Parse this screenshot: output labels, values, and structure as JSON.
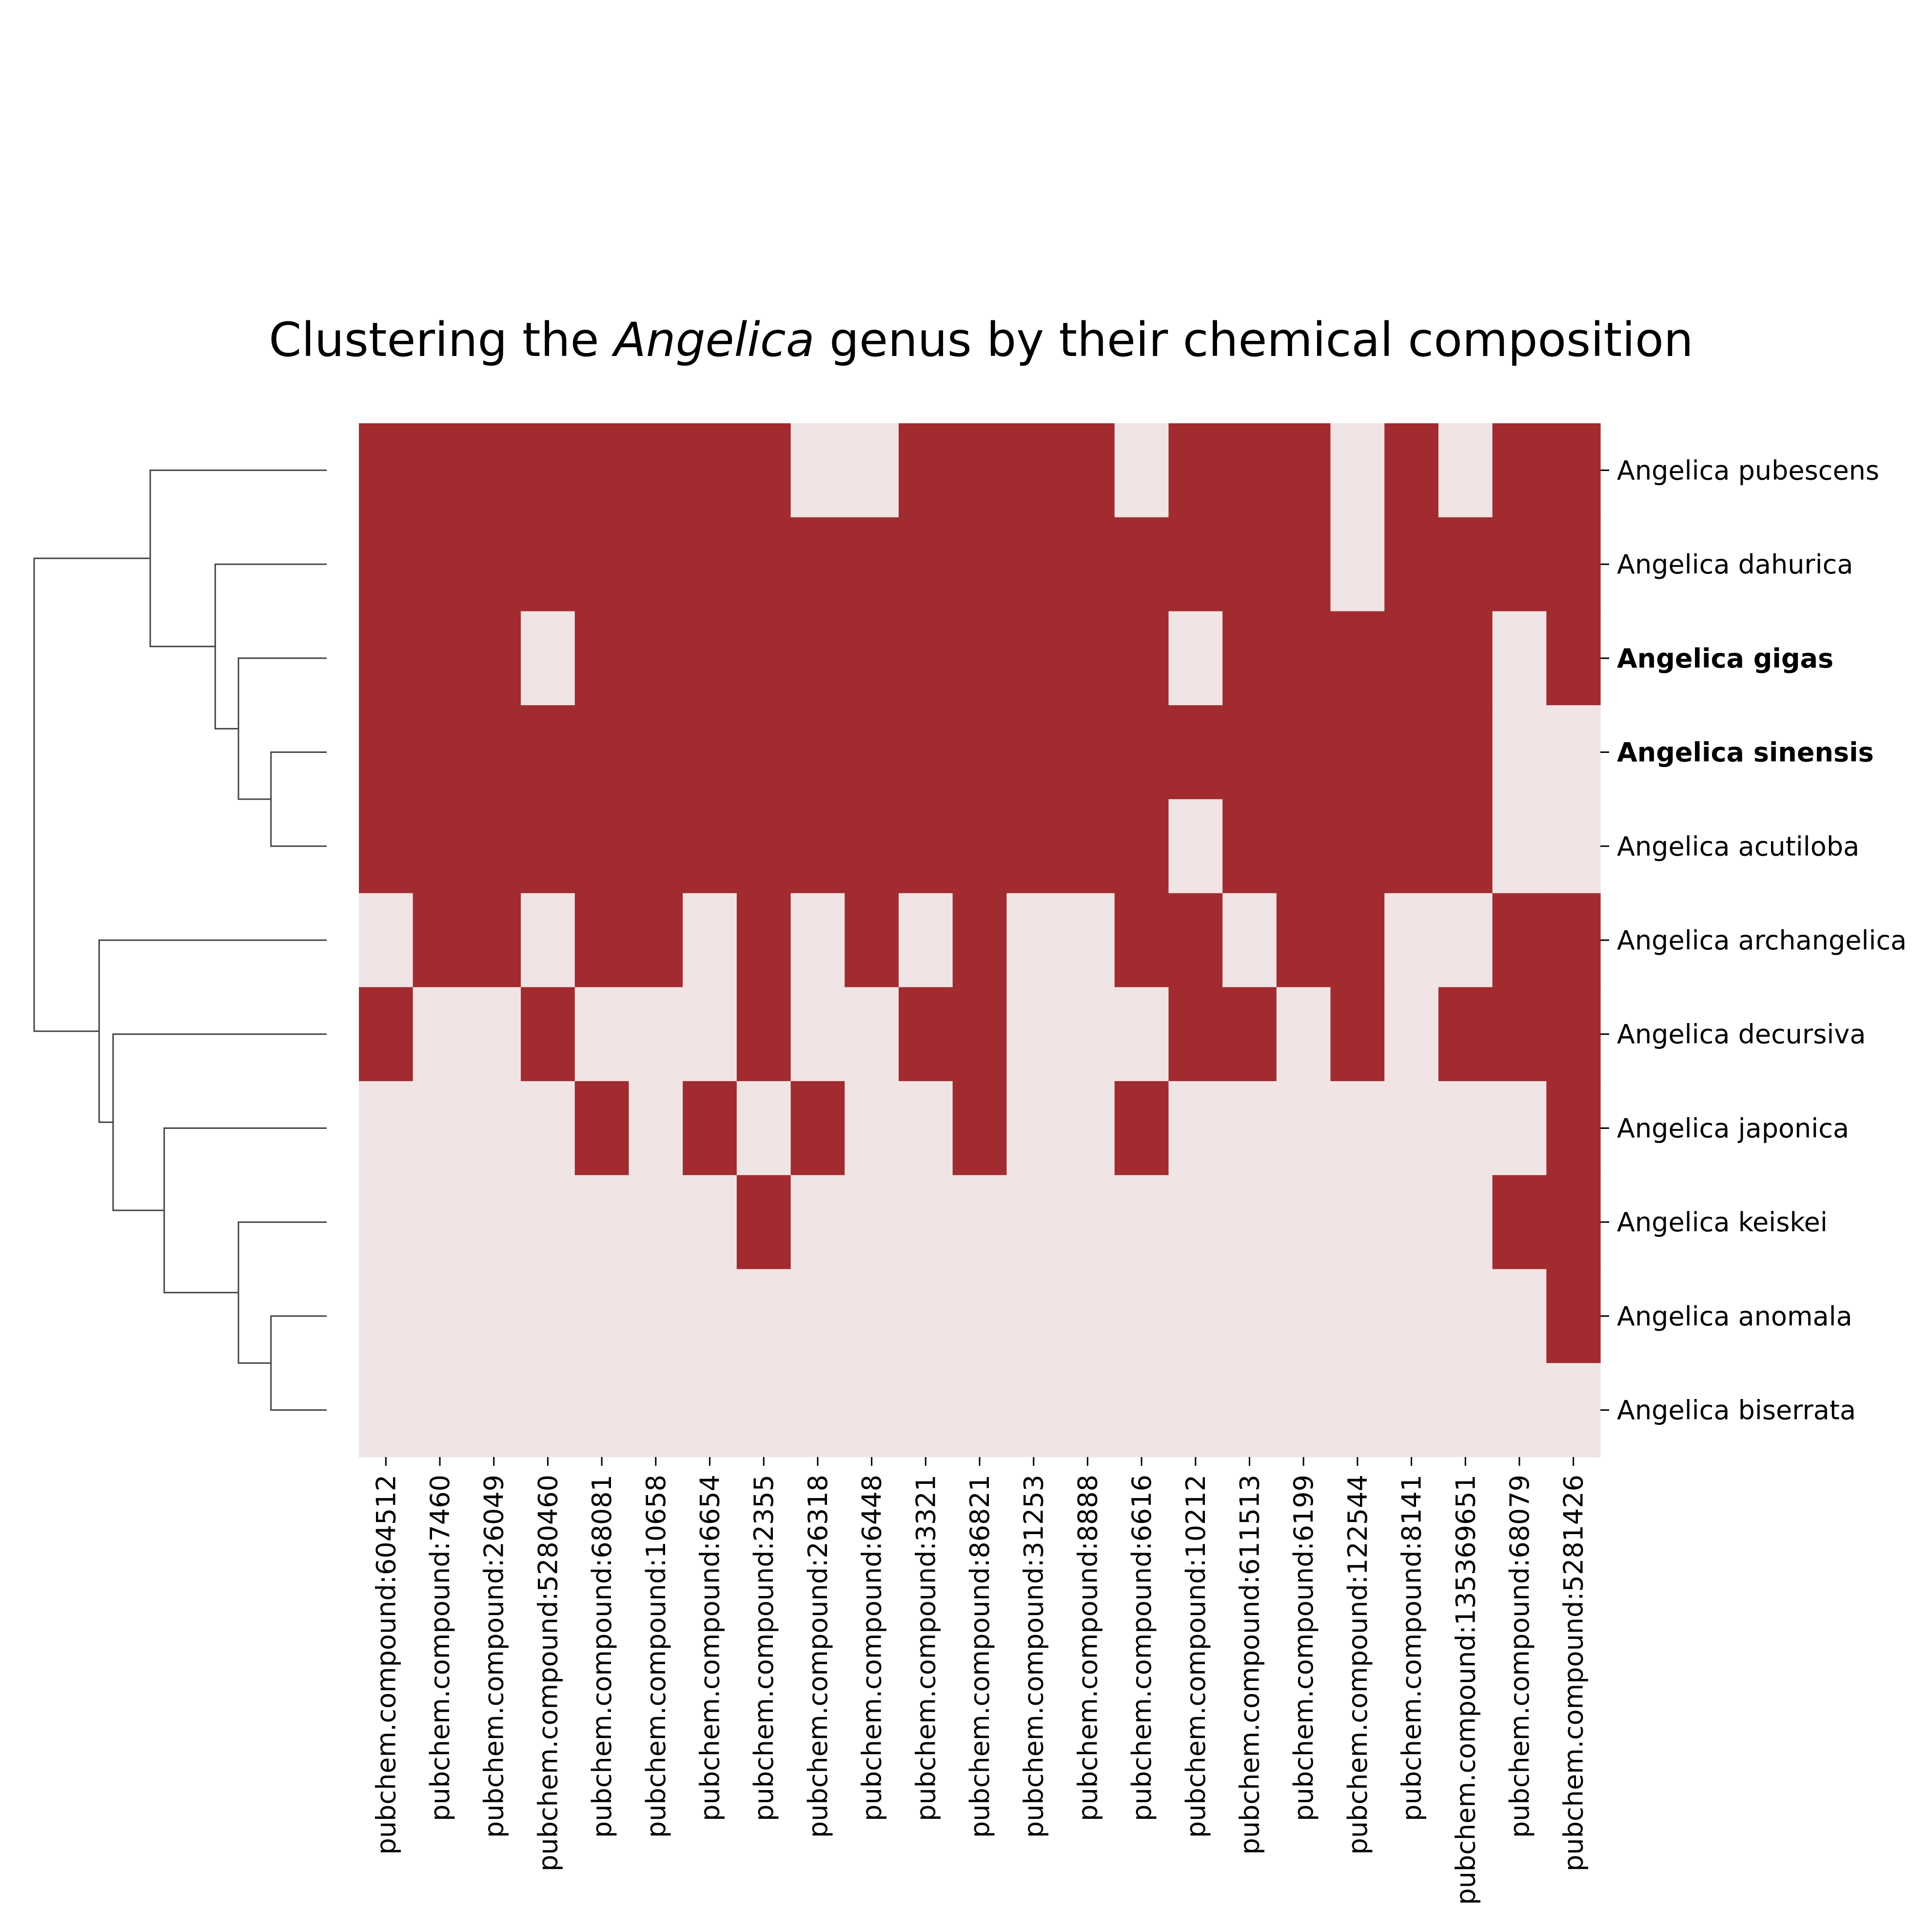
{
  "chart_data": {
    "type": "heatmap",
    "title": {
      "prefix": "Clustering the ",
      "italic": "Angelica",
      "suffix": " genus by their chemical composition"
    },
    "rows": [
      "Angelica pubescens",
      "Angelica dahurica",
      "Angelica gigas",
      "Angelica sinensis",
      "Angelica acutiloba",
      "Angelica archangelica",
      "Angelica decursiva",
      "Angelica japonica",
      "Angelica keiskei",
      "Angelica anomala",
      "Angelica biserrata"
    ],
    "bold_rows": [
      "Angelica gigas",
      "Angelica sinensis"
    ],
    "columns": [
      "pubchem.compound:604512",
      "pubchem.compound:7460",
      "pubchem.compound:26049",
      "pubchem.compound:5280460",
      "pubchem.compound:68081",
      "pubchem.compound:10658",
      "pubchem.compound:6654",
      "pubchem.compound:2355",
      "pubchem.compound:26318",
      "pubchem.compound:6448",
      "pubchem.compound:3321",
      "pubchem.compound:86821",
      "pubchem.compound:31253",
      "pubchem.compound:8888",
      "pubchem.compound:6616",
      "pubchem.compound:10212",
      "pubchem.compound:611513",
      "pubchem.compound:6199",
      "pubchem.compound:122544",
      "pubchem.compound:8141",
      "pubchem.compound:135369651",
      "pubchem.compound:68079",
      "pubchem.compound:5281426"
    ],
    "values": [
      [
        1,
        1,
        1,
        1,
        1,
        1,
        1,
        1,
        0,
        0,
        1,
        1,
        1,
        1,
        0,
        1,
        1,
        1,
        0,
        1,
        0,
        1,
        1
      ],
      [
        1,
        1,
        1,
        1,
        1,
        1,
        1,
        1,
        1,
        1,
        1,
        1,
        1,
        1,
        1,
        1,
        1,
        1,
        0,
        1,
        1,
        1,
        1
      ],
      [
        1,
        1,
        1,
        0,
        1,
        1,
        1,
        1,
        1,
        1,
        1,
        1,
        1,
        1,
        1,
        0,
        1,
        1,
        1,
        1,
        1,
        0,
        1
      ],
      [
        1,
        1,
        1,
        1,
        1,
        1,
        1,
        1,
        1,
        1,
        1,
        1,
        1,
        1,
        1,
        1,
        1,
        1,
        1,
        1,
        1,
        0,
        0
      ],
      [
        1,
        1,
        1,
        1,
        1,
        1,
        1,
        1,
        1,
        1,
        1,
        1,
        1,
        1,
        1,
        0,
        1,
        1,
        1,
        1,
        1,
        0,
        0
      ],
      [
        0,
        1,
        1,
        0,
        1,
        1,
        0,
        1,
        0,
        1,
        0,
        1,
        0,
        0,
        1,
        1,
        0,
        1,
        1,
        0,
        0,
        1,
        1
      ],
      [
        1,
        0,
        0,
        1,
        0,
        0,
        0,
        1,
        0,
        0,
        1,
        1,
        0,
        0,
        0,
        1,
        1,
        0,
        1,
        0,
        1,
        1,
        1
      ],
      [
        0,
        0,
        0,
        0,
        1,
        0,
        1,
        0,
        1,
        0,
        0,
        1,
        0,
        0,
        1,
        0,
        0,
        0,
        0,
        0,
        0,
        0,
        1
      ],
      [
        0,
        0,
        0,
        0,
        0,
        0,
        0,
        1,
        0,
        0,
        0,
        0,
        0,
        0,
        0,
        0,
        0,
        0,
        0,
        0,
        0,
        1,
        1
      ],
      [
        0,
        0,
        0,
        0,
        0,
        0,
        0,
        0,
        0,
        0,
        0,
        0,
        0,
        0,
        0,
        0,
        0,
        0,
        0,
        0,
        0,
        0,
        1
      ],
      [
        0,
        0,
        0,
        0,
        0,
        0,
        0,
        0,
        0,
        0,
        0,
        0,
        0,
        0,
        0,
        0,
        0,
        0,
        0,
        0,
        0,
        0,
        0
      ]
    ],
    "colors": {
      "present": "#a12b2f",
      "absent": "#f0e4e4"
    },
    "row_dendrogram": {
      "leaves_order": [
        "Angelica pubescens",
        "Angelica dahurica",
        "Angelica gigas",
        "Angelica sinensis",
        "Angelica acutiloba",
        "Angelica archangelica",
        "Angelica decursiva",
        "Angelica japonica",
        "Angelica keiskei",
        "Angelica anomala",
        "Angelica biserrata"
      ],
      "merges": [
        [
          3,
          4,
          1.2
        ],
        [
          9,
          10,
          1.2
        ],
        [
          2,
          11,
          1.9
        ],
        [
          8,
          12,
          1.9
        ],
        [
          1,
          13,
          2.4
        ],
        [
          7,
          14,
          3.5
        ],
        [
          0,
          15,
          3.8
        ],
        [
          6,
          16,
          4.6
        ],
        [
          5,
          18,
          4.9
        ],
        [
          17,
          19,
          6.3
        ]
      ]
    },
    "legend": "none",
    "grid": false
  }
}
